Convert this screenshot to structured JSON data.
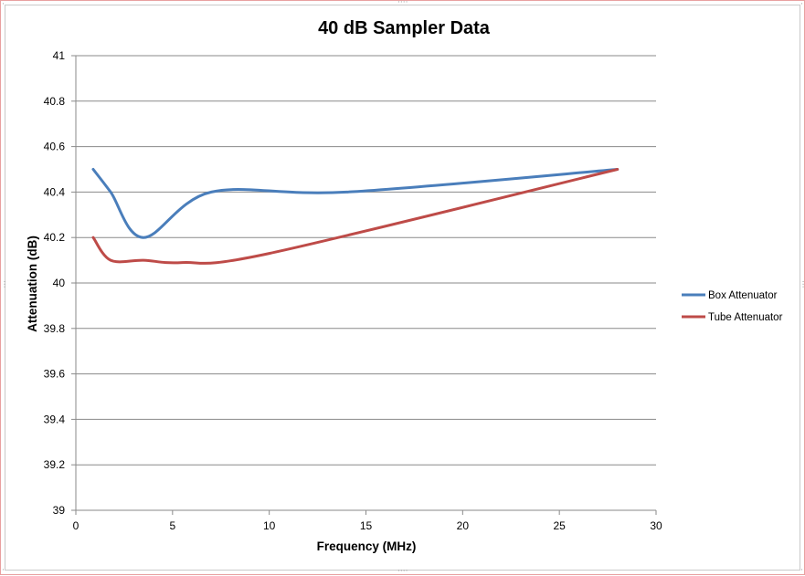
{
  "chart_data": {
    "type": "line",
    "title": "40 dB Sampler Data",
    "xlabel": "Frequency (MHz)",
    "ylabel": "Attenuation (dB)",
    "xlim": [
      0,
      30
    ],
    "ylim": [
      39,
      41
    ],
    "xticks": [
      "0",
      "5",
      "10",
      "15",
      "20",
      "25",
      "30"
    ],
    "yticks": [
      "39",
      "39.2",
      "39.4",
      "39.6",
      "39.8",
      "40",
      "40.2",
      "40.4",
      "40.6",
      "40.8",
      "41"
    ],
    "grid": "horizontal",
    "legend_position": "right",
    "smooth": true,
    "series": [
      {
        "name": "Box Attenuator",
        "color": "#4a7ebb",
        "x": [
          0.9,
          1.8,
          3.5,
          7,
          14,
          28
        ],
        "y": [
          40.5,
          40.4,
          40.2,
          40.4,
          40.4,
          40.5
        ]
      },
      {
        "name": "Tube Attenuator",
        "color": "#be4b48",
        "x": [
          0.9,
          1.8,
          3.5,
          5.5,
          10,
          28
        ],
        "y": [
          40.2,
          40.1,
          40.1,
          40.09,
          40.13,
          40.5
        ]
      }
    ]
  }
}
